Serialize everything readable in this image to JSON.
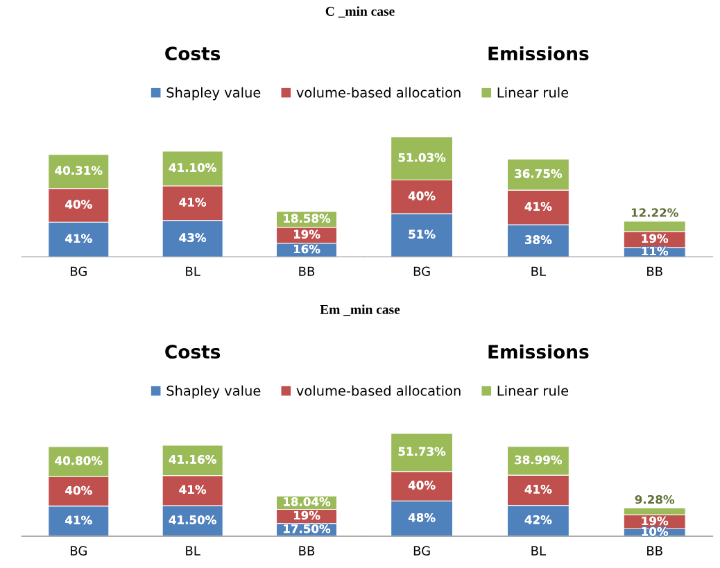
{
  "chart_data": [
    {
      "type": "bar",
      "stacked": true,
      "title": "Costs",
      "annotations": [
        "C _min case"
      ],
      "categories": [
        "BG",
        "BL",
        "BB"
      ],
      "legend": "top",
      "tick_labels": "x",
      "series": [
        {
          "name": "Shapley value",
          "color": "#4f81bd",
          "values": [
            41,
            43,
            16
          ],
          "value_labels": [
            "41%",
            "43%",
            "16%"
          ]
        },
        {
          "name": "volume-based allocation",
          "color": "#c0504d",
          "values": [
            40,
            41,
            19
          ],
          "value_labels": [
            "40%",
            "41%",
            "19%"
          ]
        },
        {
          "name": "Linear rule",
          "color": "#9bbb59",
          "values": [
            40.31,
            41.1,
            18.58
          ],
          "value_labels": [
            "40.31%",
            "41.10%",
            "18.58%"
          ]
        }
      ]
    },
    {
      "type": "bar",
      "stacked": true,
      "title": "Emissions",
      "categories": [
        "BG",
        "BL",
        "BB"
      ],
      "tick_labels": "x",
      "series": [
        {
          "color": "#4f81bd",
          "values": [
            51,
            38,
            11
          ],
          "value_labels": [
            "51%",
            "38%",
            "11%"
          ]
        },
        {
          "color": "#c0504d",
          "values": [
            40,
            41,
            19
          ],
          "value_labels": [
            "40%",
            "41%",
            "19%"
          ]
        },
        {
          "color": "#9bbb59",
          "values": [
            51.03,
            36.75,
            12.22
          ],
          "value_labels": [
            "51.03%",
            "36.75%",
            "12.22%"
          ]
        }
      ]
    },
    {
      "type": "bar",
      "stacked": true,
      "title": "Costs",
      "annotations": [
        "Em _min case"
      ],
      "categories": [
        "BG",
        "BL",
        "BB"
      ],
      "legend": "top",
      "tick_labels": "x",
      "series": [
        {
          "name": "Shapley value",
          "color": "#4f81bd",
          "values": [
            41,
            41.5,
            17.5
          ],
          "value_labels": [
            "41%",
            "41.50%",
            "17.50%"
          ]
        },
        {
          "name": "volume-based allocation",
          "color": "#c0504d",
          "values": [
            40,
            41,
            19
          ],
          "value_labels": [
            "40%",
            "41%",
            "19%"
          ]
        },
        {
          "name": "Linear rule",
          "color": "#9bbb59",
          "values": [
            40.8,
            41.16,
            18.04
          ],
          "value_labels": [
            "40.80%",
            "41.16%",
            "18.04%"
          ]
        }
      ]
    },
    {
      "type": "bar",
      "stacked": true,
      "title": "Emissions",
      "categories": [
        "BG",
        "BL",
        "BB"
      ],
      "tick_labels": "x",
      "series": [
        {
          "color": "#4f81bd",
          "values": [
            48,
            42,
            10
          ],
          "value_labels": [
            "48%",
            "42%",
            "10%"
          ]
        },
        {
          "color": "#c0504d",
          "values": [
            40,
            41,
            19
          ],
          "value_labels": [
            "40%",
            "41%",
            "19%"
          ]
        },
        {
          "color": "#9bbb59",
          "values": [
            51.73,
            38.99,
            9.28
          ],
          "value_labels": [
            "51.73%",
            "38.99%",
            "9.28%"
          ]
        }
      ]
    }
  ]
}
